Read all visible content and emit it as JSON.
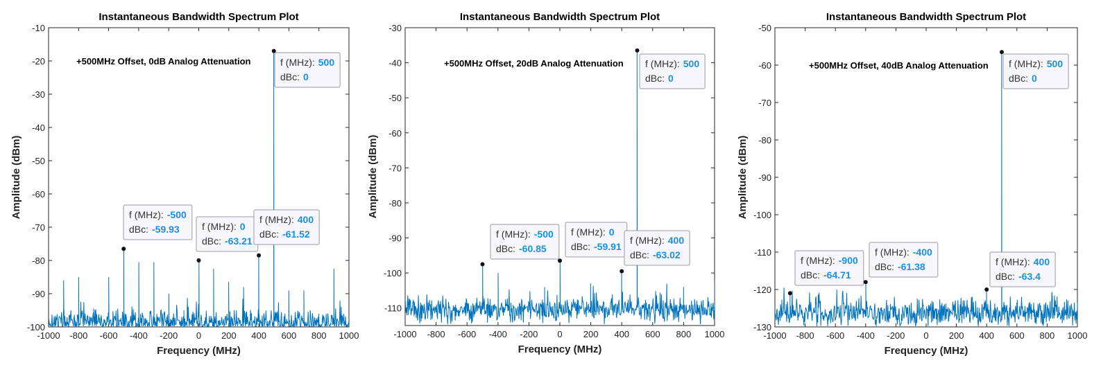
{
  "chart_data": [
    {
      "type": "line",
      "title": "Instantaneous Bandwidth Spectrum Plot",
      "xlabel": "Frequency (MHz)",
      "ylabel": "Amplitude (dBm)",
      "annotation": "+500MHz Offset, 0dB Analog Attenuation",
      "xlim": [
        -1000,
        1000
      ],
      "ylim": [
        -100,
        -10
      ],
      "xticks": [
        "-1000",
        "-800",
        "-600",
        "-400",
        "-200",
        "0",
        "200",
        "400",
        "600",
        "800",
        "1000"
      ],
      "yticks": [
        "-10",
        "-20",
        "-30",
        "-40",
        "-50",
        "-60",
        "-70",
        "-80",
        "-90",
        "-100"
      ],
      "grid": false,
      "noise_floor": -98.5,
      "series": [
        {
          "color": "#0072BD",
          "spurs": [
            {
              "x": 500,
              "y": -17
            },
            {
              "x": -500,
              "y": -76.5
            },
            {
              "x": 0,
              "y": -80
            },
            {
              "x": 400,
              "y": -78.5
            },
            {
              "x": -900,
              "y": -86
            },
            {
              "x": -800,
              "y": -85
            },
            {
              "x": -700,
              "y": -94.5
            },
            {
              "x": -600,
              "y": -85
            },
            {
              "x": -400,
              "y": -80.5
            },
            {
              "x": -300,
              "y": -80.5
            },
            {
              "x": -200,
              "y": -90
            },
            {
              "x": -100,
              "y": -95
            },
            {
              "x": 100,
              "y": -82.5
            },
            {
              "x": 200,
              "y": -86.5
            },
            {
              "x": 300,
              "y": -88
            },
            {
              "x": 600,
              "y": -89
            },
            {
              "x": 700,
              "y": -89
            },
            {
              "x": 800,
              "y": -96
            },
            {
              "x": 900,
              "y": -82.5
            }
          ]
        }
      ],
      "datatips": [
        {
          "f_label": "f (MHz):",
          "f": "500",
          "d_label": "dBc:",
          "d": "0",
          "x": 500,
          "y": -17
        },
        {
          "f_label": "f (MHz):",
          "f": "-500",
          "d_label": "dBc:",
          "d": "-59.93",
          "x": -500,
          "y": -76.5
        },
        {
          "f_label": "f (MHz):",
          "f": "0",
          "d_label": "dBc:",
          "d": "-63.21",
          "x": 0,
          "y": -80
        },
        {
          "f_label": "f (MHz):",
          "f": "400",
          "d_label": "dBc:",
          "d": "-61.52",
          "x": 400,
          "y": -78.5
        }
      ]
    },
    {
      "type": "line",
      "title": "Instantaneous Bandwidth Spectrum Plot",
      "xlabel": "Frequency (MHz)",
      "ylabel": "Amplitude (dBm)",
      "annotation": "+500MHz Offset, 20dB Analog Attenuation",
      "xlim": [
        -1000,
        1000
      ],
      "ylim": [
        -115,
        -30
      ],
      "xticks": [
        "-1000",
        "-800",
        "-600",
        "-400",
        "-200",
        "0",
        "200",
        "400",
        "600",
        "800",
        "1000"
      ],
      "yticks": [
        "-30",
        "-40",
        "-50",
        "-60",
        "-70",
        "-80",
        "-90",
        "-100",
        "-110"
      ],
      "grid": false,
      "noise_floor": -110.5,
      "series": [
        {
          "color": "#0072BD",
          "spurs": [
            {
              "x": 500,
              "y": -36.5
            },
            {
              "x": -500,
              "y": -97.5
            },
            {
              "x": 0,
              "y": -96.5
            },
            {
              "x": 400,
              "y": -99.5
            },
            {
              "x": -400,
              "y": -100
            },
            {
              "x": -100,
              "y": -104
            },
            {
              "x": 200,
              "y": -103
            },
            {
              "x": 800,
              "y": -104
            },
            {
              "x": 1000,
              "y": -102.5
            }
          ]
        }
      ],
      "datatips": [
        {
          "f_label": "f (MHz):",
          "f": "500",
          "d_label": "dBc:",
          "d": "0",
          "x": 500,
          "y": -36.5
        },
        {
          "f_label": "f (MHz):",
          "f": "-500",
          "d_label": "dBc:",
          "d": "-60.85",
          "x": -500,
          "y": -97.5
        },
        {
          "f_label": "f (MHz):",
          "f": "0",
          "d_label": "dBc:",
          "d": "-59.91",
          "x": 0,
          "y": -96.5
        },
        {
          "f_label": "f (MHz):",
          "f": "400",
          "d_label": "dBc:",
          "d": "-63.02",
          "x": 400,
          "y": -99.5
        }
      ]
    },
    {
      "type": "line",
      "title": "Instantaneous Bandwidth Spectrum Plot",
      "xlabel": "Frequency (MHz)",
      "ylabel": "Amplitude (dBm)",
      "annotation": "+500MHz Offset, 40dB Analog Attenuation",
      "xlim": [
        -1000,
        1000
      ],
      "ylim": [
        -130,
        -50
      ],
      "xticks": [
        "-1000",
        "-800",
        "-600",
        "-400",
        "-200",
        "0",
        "200",
        "400",
        "600",
        "800",
        "1000"
      ],
      "yticks": [
        "-50",
        "-60",
        "-70",
        "-80",
        "-90",
        "-100",
        "-110",
        "-120",
        "-130"
      ],
      "grid": false,
      "noise_floor": -126.3,
      "series": [
        {
          "color": "#0072BD",
          "spurs": [
            {
              "x": 500,
              "y": -56.5
            },
            {
              "x": -900,
              "y": -121
            },
            {
              "x": -400,
              "y": -118
            },
            {
              "x": 400,
              "y": -120
            },
            {
              "x": -700,
              "y": -123
            },
            {
              "x": -500,
              "y": -123.5
            },
            {
              "x": -100,
              "y": -123.5
            },
            {
              "x": 0,
              "y": -124.5
            },
            {
              "x": 600,
              "y": -123.5
            },
            {
              "x": 1000,
              "y": -123.5
            }
          ]
        }
      ],
      "datatips": [
        {
          "f_label": "f (MHz):",
          "f": "500",
          "d_label": "dBc:",
          "d": "0",
          "x": 500,
          "y": -56.5
        },
        {
          "f_label": "f (MHz):",
          "f": "-900",
          "d_label": "dBc:",
          "d": "-64.71",
          "x": -900,
          "y": -121
        },
        {
          "f_label": "f (MHz):",
          "f": "-400",
          "d_label": "dBc:",
          "d": "-61.38",
          "x": -400,
          "y": -118
        },
        {
          "f_label": "f (MHz):",
          "f": "400",
          "d_label": "dBc:",
          "d": "-63.4",
          "x": 400,
          "y": -120
        }
      ]
    }
  ]
}
